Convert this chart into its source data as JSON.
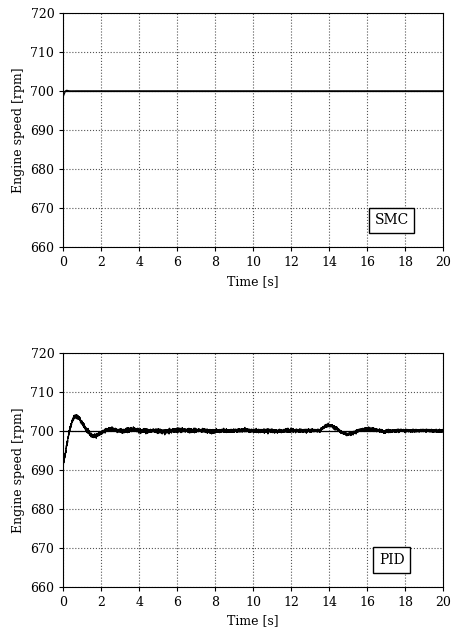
{
  "ylim": [
    660,
    720
  ],
  "xlim": [
    0,
    20
  ],
  "yticks": [
    660,
    670,
    680,
    690,
    700,
    710,
    720
  ],
  "xticks": [
    0,
    2,
    4,
    6,
    8,
    10,
    12,
    14,
    16,
    18,
    20
  ],
  "ylabel": "Engine speed [rpm]",
  "xlabel": "Time [s]",
  "setpoint": 700,
  "label_smc": "SMC",
  "label_pid": "PID",
  "bg_color": "#ffffff",
  "line_color": "#000000",
  "grid_color": "#555555",
  "axis_fontsize": 9,
  "tick_fontsize": 9,
  "legend_fontsize": 10
}
